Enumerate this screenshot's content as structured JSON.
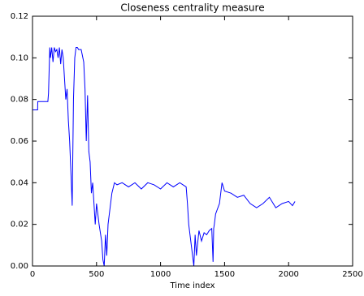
{
  "chart_data": {
    "type": "line",
    "title": "Closeness centrality measure",
    "x_label": "Time index",
    "x": [
      0,
      40,
      41,
      120,
      125,
      135,
      140,
      150,
      160,
      170,
      180,
      190,
      200,
      210,
      220,
      230,
      240,
      250,
      260,
      270,
      280,
      290,
      300,
      310,
      320,
      330,
      340,
      350,
      360,
      380,
      400,
      410,
      420,
      430,
      440,
      450,
      460,
      470,
      480,
      490,
      500,
      510,
      520,
      540,
      550,
      560,
      570,
      580,
      590,
      600,
      620,
      640,
      660,
      700,
      750,
      800,
      850,
      900,
      950,
      1000,
      1050,
      1100,
      1150,
      1200,
      1210,
      1220,
      1240,
      1260,
      1270,
      1280,
      1300,
      1320,
      1340,
      1360,
      1380,
      1400,
      1410,
      1415,
      1420,
      1430,
      1460,
      1480,
      1500,
      1550,
      1600,
      1650,
      1700,
      1750,
      1800,
      1850,
      1900,
      1950,
      2000,
      2030,
      2050
    ],
    "series": [
      {
        "name": "closeness",
        "color": "#0000ff",
        "values": [
          0.075,
          0.075,
          0.079,
          0.079,
          0.083,
          0.105,
          0.1,
          0.105,
          0.098,
          0.105,
          0.103,
          0.104,
          0.1,
          0.105,
          0.097,
          0.104,
          0.1,
          0.09,
          0.08,
          0.085,
          0.07,
          0.06,
          0.045,
          0.029,
          0.08,
          0.1,
          0.105,
          0.105,
          0.104,
          0.104,
          0.098,
          0.085,
          0.06,
          0.082,
          0.055,
          0.05,
          0.035,
          0.04,
          0.03,
          0.02,
          0.03,
          0.025,
          0.02,
          0.012,
          0.003,
          0.0,
          0.015,
          0.005,
          0.02,
          0.025,
          0.035,
          0.04,
          0.039,
          0.04,
          0.038,
          0.04,
          0.037,
          0.04,
          0.039,
          0.037,
          0.04,
          0.038,
          0.04,
          0.038,
          0.03,
          0.02,
          0.01,
          0.0,
          0.015,
          0.005,
          0.017,
          0.012,
          0.016,
          0.015,
          0.017,
          0.018,
          0.002,
          0.018,
          0.02,
          0.025,
          0.03,
          0.04,
          0.036,
          0.035,
          0.033,
          0.034,
          0.03,
          0.028,
          0.03,
          0.033,
          0.028,
          0.03,
          0.031,
          0.029,
          0.031
        ]
      }
    ],
    "xlim": [
      0,
      2500
    ],
    "ylim": [
      0,
      0.12
    ],
    "xticks": [
      0,
      500,
      1000,
      1500,
      2000,
      2500
    ],
    "yticks": [
      {
        "value": 0,
        "label": "0.00"
      },
      0.02,
      0.04,
      0.06,
      0.08,
      {
        "value": 0.1,
        "label": "0.10"
      },
      0.12
    ]
  }
}
